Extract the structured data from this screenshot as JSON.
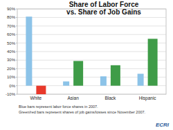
{
  "chart_data": {
    "type": "bar",
    "title": "Share of Labor Force vs. Share of Job Gains",
    "categories": [
      "White",
      "Asian",
      "Black",
      "Hispanic"
    ],
    "series": [
      {
        "color": "#8cc3e8",
        "values": [
          81,
          5,
          11,
          14
        ]
      },
      {
        "colors": [
          "#e8392b",
          "#3f9c48",
          "#3f9c48",
          "#3f9c48"
        ],
        "values": [
          -10,
          29,
          24,
          55
        ]
      }
    ],
    "ylim": [
      -10,
      90
    ],
    "yticks": [
      {
        "value": -10,
        "label": "-10%"
      },
      {
        "value": 0,
        "label": "0%"
      },
      {
        "value": 10,
        "label": "10%"
      },
      {
        "value": 20,
        "label": "20%"
      },
      {
        "value": 30,
        "label": "30%"
      },
      {
        "value": 40,
        "label": "40%"
      },
      {
        "value": 50,
        "label": "50%"
      },
      {
        "value": 60,
        "label": "60%"
      },
      {
        "value": 70,
        "label": "70%"
      },
      {
        "value": 80,
        "label": "80%"
      },
      {
        "value": 90,
        "label": "90%"
      }
    ],
    "grid": true,
    "annotations": [
      "Blue bars represent labor force shares in 2007.",
      "Green/red bars represent shares of job gains/losses since November 2007."
    ],
    "logo": "ECRI"
  }
}
